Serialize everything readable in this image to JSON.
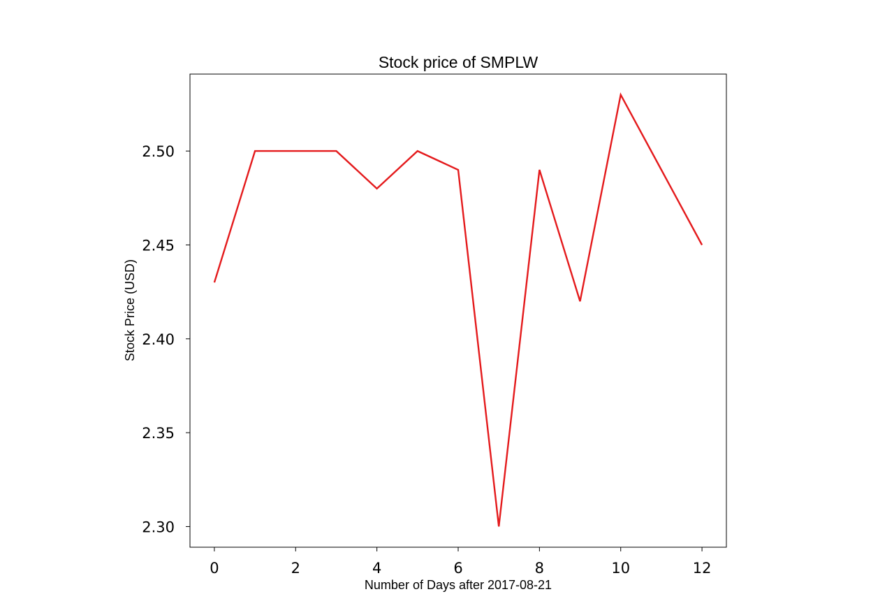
{
  "chart_data": {
    "type": "line",
    "title": "Stock price of SMPLW",
    "xlabel": "Number of Days after 2017-08-21",
    "ylabel": "Stock Price (USD)",
    "x": [
      0,
      1,
      2,
      3,
      4,
      5,
      6,
      7,
      8,
      9,
      10,
      11,
      12
    ],
    "series": [
      {
        "values": [
          2.43,
          2.5,
          2.5,
          2.5,
          2.48,
          2.5,
          2.49,
          2.3,
          2.49,
          2.42,
          2.53,
          2.49,
          2.45
        ],
        "color": "#e41a1c"
      }
    ],
    "xlim": [
      -0.6,
      12.6
    ],
    "ylim": [
      2.289,
      2.541
    ],
    "xticks": [
      "0",
      "2",
      "4",
      "6",
      "8",
      "10",
      "12"
    ],
    "yticks": [
      "2.30",
      "2.35",
      "2.40",
      "2.45",
      "2.50"
    ],
    "grid": false,
    "legend": "none"
  }
}
